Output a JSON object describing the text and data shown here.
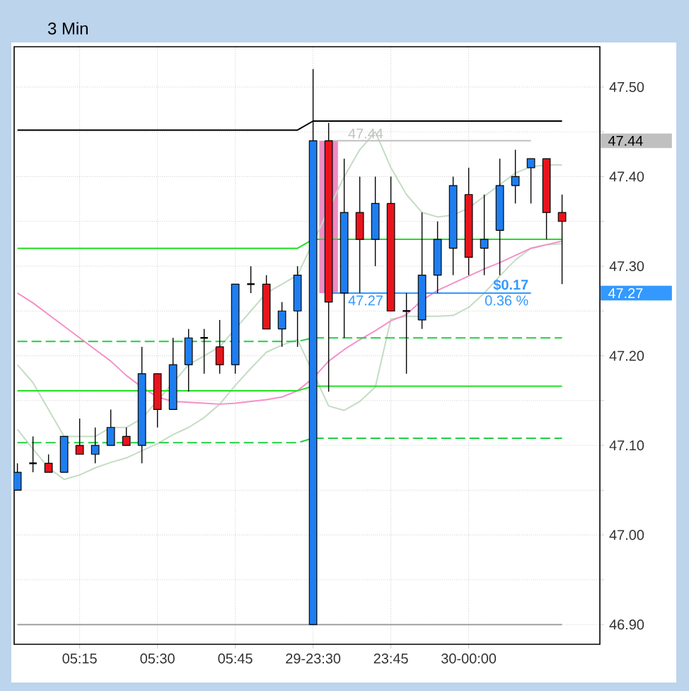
{
  "chart_data": {
    "type": "candlestick",
    "title": "3 Min",
    "categories": [
      null,
      null,
      null,
      null,
      "05:15",
      null,
      null,
      null,
      null,
      "05:30",
      null,
      null,
      null,
      null,
      "05:45",
      null,
      null,
      null,
      null,
      "29-23:30",
      null,
      null,
      null,
      null,
      "23:45",
      null,
      null,
      null,
      null,
      "30-00:00",
      null,
      null,
      null,
      null,
      null,
      null
    ],
    "ohlc": [
      [
        47.05,
        47.08,
        47.05,
        47.07
      ],
      [
        47.08,
        47.11,
        47.07,
        47.08
      ],
      [
        47.08,
        47.09,
        47.07,
        47.07
      ],
      [
        47.07,
        47.11,
        47.07,
        47.11
      ],
      [
        47.1,
        47.13,
        47.09,
        47.09
      ],
      [
        47.09,
        47.12,
        47.08,
        47.1
      ],
      [
        47.1,
        47.14,
        47.1,
        47.12
      ],
      [
        47.11,
        47.12,
        47.1,
        47.1
      ],
      [
        47.1,
        47.21,
        47.08,
        47.18
      ],
      [
        47.18,
        47.18,
        47.12,
        47.14
      ],
      [
        47.14,
        47.22,
        47.14,
        47.19
      ],
      [
        47.19,
        47.23,
        47.16,
        47.22
      ],
      [
        47.22,
        47.23,
        47.18,
        47.22
      ],
      [
        47.21,
        47.24,
        47.18,
        47.19
      ],
      [
        47.19,
        47.28,
        47.18,
        47.28
      ],
      [
        47.28,
        47.3,
        47.27,
        47.28
      ],
      [
        47.28,
        47.29,
        47.23,
        47.23
      ],
      [
        47.23,
        47.26,
        47.21,
        47.25
      ],
      [
        47.25,
        47.3,
        47.21,
        47.29
      ],
      [
        46.9,
        47.52,
        46.9,
        47.44
      ],
      [
        47.44,
        47.46,
        47.16,
        47.26
      ],
      [
        47.27,
        47.42,
        47.22,
        47.36
      ],
      [
        47.36,
        47.4,
        47.27,
        47.33
      ],
      [
        47.33,
        47.4,
        47.3,
        47.37
      ],
      [
        47.37,
        47.4,
        47.25,
        47.25
      ],
      [
        47.25,
        47.27,
        47.18,
        47.25
      ],
      [
        47.24,
        47.36,
        47.23,
        47.29
      ],
      [
        47.29,
        47.35,
        47.27,
        47.33
      ],
      [
        47.32,
        47.4,
        47.29,
        47.39
      ],
      [
        47.38,
        47.41,
        47.29,
        47.31
      ],
      [
        47.32,
        47.38,
        47.29,
        47.33
      ],
      [
        47.34,
        47.42,
        47.29,
        47.39
      ],
      [
        47.39,
        47.43,
        47.37,
        47.4
      ],
      [
        47.41,
        47.42,
        47.37,
        47.42
      ],
      [
        47.42,
        47.42,
        47.33,
        47.36
      ],
      [
        47.36,
        47.38,
        47.28,
        47.35
      ]
    ],
    "colors": [
      "#1e7ef0",
      "#000000",
      "#e8141c",
      "#1e7ef0",
      "#e8141c",
      "#1e7ef0",
      "#1e7ef0",
      "#e8141c",
      "#1e7ef0",
      "#e8141c",
      "#1e7ef0",
      "#1e7ef0",
      "#000000",
      "#e8141c",
      "#1e7ef0",
      "#000000",
      "#e8141c",
      "#1e7ef0",
      "#1e7ef0",
      "#1e7ef0",
      "#e8141c",
      "#1e7ef0",
      "#e8141c",
      "#1e7ef0",
      "#e8141c",
      "#000000",
      "#1e7ef0",
      "#1e7ef0",
      "#1e7ef0",
      "#e8141c",
      "#1e7ef0",
      "#1e7ef0",
      "#1e7ef0",
      "#1e7ef0",
      "#e8141c",
      "#e8141c"
    ],
    "ylim": [
      46.878,
      47.545
    ],
    "yticks": [
      {
        "value": 46.9,
        "label": "46.90"
      },
      {
        "value": 46.95,
        "label": null
      },
      {
        "value": 47.0,
        "label": "47.00"
      },
      {
        "value": 47.05,
        "label": null
      },
      {
        "value": 47.1,
        "label": "47.10"
      },
      {
        "value": 47.15,
        "label": null
      },
      {
        "value": 47.2,
        "label": "47.20"
      },
      {
        "value": 47.25,
        "label": null
      },
      {
        "value": 47.3,
        "label": "47.30"
      },
      {
        "value": 47.35,
        "label": null
      },
      {
        "value": 47.4,
        "label": "47.40"
      },
      {
        "value": 47.45,
        "label": null
      },
      {
        "value": 47.5,
        "label": "47.50"
      }
    ],
    "grid": true,
    "series": [
      {
        "type": "bar",
        "color": "#f08cc4",
        "values": [
          null,
          null,
          null,
          null,
          null,
          null,
          null,
          null,
          null,
          null,
          null,
          null,
          null,
          null,
          null,
          null,
          null,
          null,
          null,
          null,
          0.17,
          null,
          null,
          null,
          null,
          null,
          null,
          null,
          null,
          null,
          null,
          null,
          null,
          null,
          null,
          null
        ],
        "base": [
          null,
          null,
          null,
          null,
          null,
          null,
          null,
          null,
          null,
          null,
          null,
          null,
          null,
          null,
          null,
          null,
          null,
          null,
          null,
          null,
          47.27,
          null,
          null,
          null,
          null,
          null,
          null,
          null,
          null,
          null,
          null,
          null,
          null,
          null,
          null,
          null
        ]
      },
      {
        "type": "line",
        "color": "#c4dcc4",
        "values": [
          47.19,
          47.17,
          47.14,
          47.11,
          47.11,
          47.11,
          47.12,
          47.12,
          47.13,
          47.15,
          47.17,
          47.19,
          47.2,
          47.21,
          47.23,
          47.25,
          47.27,
          47.28,
          47.29,
          null,
          null,
          47.4,
          47.43,
          47.45,
          47.41,
          47.38,
          47.36,
          47.355,
          47.357,
          47.365,
          47.378,
          47.391,
          47.404,
          47.411,
          47.413,
          47.413
        ]
      },
      {
        "type": "line",
        "color": "#c4dcc4",
        "values": [
          47.118,
          47.096,
          47.075,
          47.062,
          47.067,
          47.075,
          47.081,
          47.086,
          47.094,
          47.102,
          47.112,
          47.12,
          47.131,
          47.146,
          47.167,
          47.186,
          47.204,
          47.212,
          47.218,
          null,
          47.144,
          47.139,
          47.149,
          47.165,
          47.241,
          47.244,
          47.244,
          47.244,
          47.245,
          47.254,
          47.27,
          47.289,
          47.307,
          47.32,
          47.324,
          47.325
        ]
      },
      {
        "type": "line",
        "color": "#f590c8",
        "values": [
          47.27,
          47.259,
          47.246,
          47.233,
          47.22,
          47.207,
          47.194,
          47.178,
          47.165,
          47.154,
          47.149,
          47.148,
          47.147,
          47.146,
          47.147,
          47.149,
          47.151,
          47.154,
          47.161,
          47.175,
          47.194,
          47.207,
          47.218,
          47.228,
          47.239,
          47.246,
          47.262,
          47.273,
          47.281,
          47.289,
          47.297,
          47.304,
          47.312,
          47.32,
          47.324,
          47.328
        ]
      },
      {
        "type": "line",
        "color": "#20e020",
        "line_style": "solid",
        "values": [
          47.32,
          47.32,
          47.32,
          47.32,
          47.32,
          47.32,
          47.32,
          47.32,
          47.32,
          47.32,
          47.32,
          47.32,
          47.32,
          47.32,
          47.32,
          47.32,
          47.32,
          47.32,
          47.32,
          47.33,
          47.33,
          47.33,
          47.33,
          47.33,
          47.33,
          47.33,
          47.33,
          47.33,
          47.33,
          47.33,
          47.33,
          47.33,
          47.33,
          47.33,
          47.33,
          47.33
        ]
      },
      {
        "type": "line",
        "color": "#20e020",
        "line_style": "solid",
        "values": [
          47.161,
          47.161,
          47.161,
          47.161,
          47.161,
          47.161,
          47.161,
          47.161,
          47.161,
          47.161,
          47.161,
          47.161,
          47.161,
          47.161,
          47.161,
          47.161,
          47.161,
          47.161,
          47.161,
          47.166,
          47.166,
          47.166,
          47.166,
          47.166,
          47.166,
          47.166,
          47.166,
          47.166,
          47.166,
          47.166,
          47.166,
          47.166,
          47.166,
          47.166,
          47.166,
          47.166
        ]
      },
      {
        "type": "line",
        "color": "#20d040",
        "line_style": "dashed",
        "values": [
          47.216,
          47.216,
          47.216,
          47.216,
          47.216,
          47.216,
          47.216,
          47.216,
          47.216,
          47.216,
          47.216,
          47.216,
          47.216,
          47.216,
          47.216,
          47.216,
          47.216,
          47.216,
          47.216,
          47.22,
          47.22,
          47.22,
          47.22,
          47.22,
          47.22,
          47.22,
          47.22,
          47.22,
          47.22,
          47.22,
          47.22,
          47.22,
          47.22,
          47.22,
          47.22,
          47.22
        ]
      },
      {
        "type": "line",
        "color": "#20d040",
        "line_style": "dashed",
        "values": [
          47.103,
          47.103,
          47.103,
          47.103,
          47.103,
          47.103,
          47.103,
          47.103,
          47.103,
          47.103,
          47.103,
          47.103,
          47.103,
          47.103,
          47.103,
          47.103,
          47.103,
          47.103,
          47.103,
          47.108,
          47.108,
          47.108,
          47.108,
          47.108,
          47.108,
          47.108,
          47.108,
          47.108,
          47.108,
          47.108,
          47.108,
          47.108,
          47.108,
          47.108,
          47.108,
          47.108
        ]
      },
      {
        "type": "line",
        "color": "#000000",
        "values": [
          47.452,
          47.452,
          47.452,
          47.452,
          47.452,
          47.452,
          47.452,
          47.452,
          47.452,
          47.452,
          47.452,
          47.452,
          47.452,
          47.452,
          47.452,
          47.452,
          47.452,
          47.452,
          47.452,
          47.462,
          47.462,
          47.462,
          47.462,
          47.462,
          47.462,
          47.462,
          47.462,
          47.462,
          47.462,
          47.462,
          47.462,
          47.462,
          47.462,
          47.462,
          47.462,
          47.462
        ]
      },
      {
        "type": "line",
        "color": "#a0a0a0",
        "values": [
          46.9,
          46.9,
          46.9,
          46.9,
          46.9,
          46.9,
          46.9,
          46.9,
          46.9,
          46.9,
          46.9,
          46.9,
          46.9,
          46.9,
          46.9,
          46.9,
          46.9,
          46.9,
          46.9,
          46.9,
          46.9,
          46.9,
          46.9,
          46.9,
          46.9,
          46.9,
          46.9,
          46.9,
          46.9,
          46.9,
          46.9,
          46.9,
          46.9,
          46.9,
          46.9,
          46.9
        ]
      },
      {
        "type": "line",
        "name": "47.44",
        "color": "#c0c0c0",
        "values": [
          null,
          null,
          null,
          null,
          null,
          null,
          null,
          null,
          null,
          null,
          null,
          null,
          null,
          null,
          null,
          null,
          null,
          null,
          null,
          null,
          47.44,
          47.44,
          47.44,
          47.44,
          47.44,
          47.44,
          47.44,
          47.44,
          47.44,
          47.44,
          47.44,
          47.44,
          47.44,
          47.44,
          null,
          null
        ]
      },
      {
        "type": "line",
        "name": "47.27",
        "color": "#3399ff",
        "values": [
          null,
          null,
          null,
          null,
          null,
          null,
          null,
          null,
          null,
          null,
          null,
          null,
          null,
          null,
          null,
          null,
          null,
          null,
          null,
          null,
          47.27,
          47.27,
          47.27,
          47.27,
          47.27,
          47.27,
          47.27,
          47.27,
          47.27,
          47.27,
          47.27,
          47.27,
          47.27,
          47.27,
          null,
          null
        ]
      }
    ],
    "annotations": [
      "47.44",
      "47.27",
      "$0.17",
      "0.36 %"
    ]
  }
}
